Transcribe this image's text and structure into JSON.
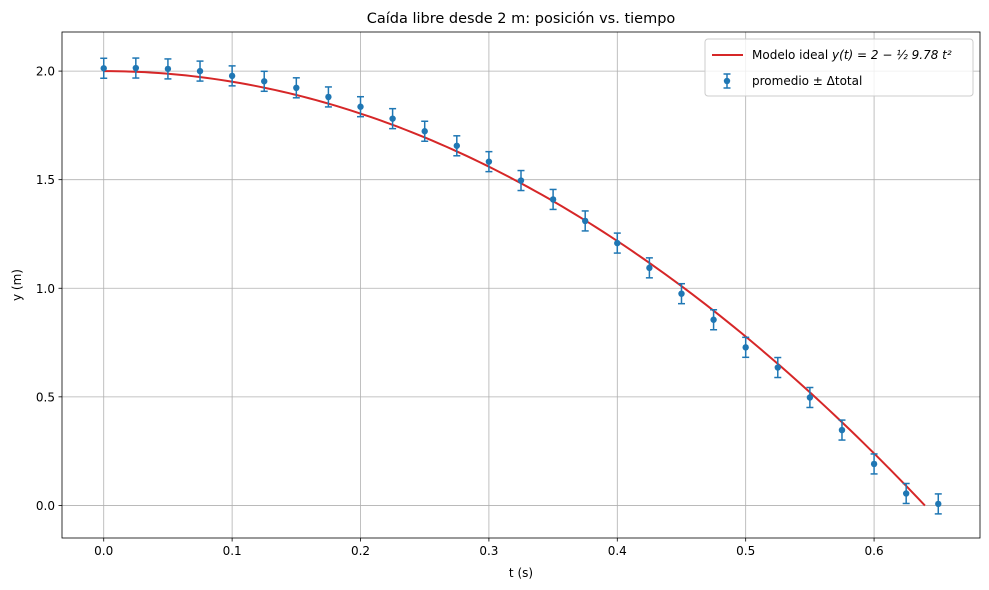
{
  "chart_data": {
    "type": "scatter",
    "title": "Caída libre desde 2 m: posición vs. tiempo",
    "xlabel": "t (s)",
    "ylabel": "y (m)",
    "xlim": [
      -0.0325,
      0.6825
    ],
    "ylim": [
      -0.15,
      2.18
    ],
    "xticks": [
      0.0,
      0.1,
      0.2,
      0.3,
      0.4,
      0.5,
      0.6
    ],
    "xtick_labels": [
      "0.0",
      "0.1",
      "0.2",
      "0.3",
      "0.4",
      "0.5",
      "0.6"
    ],
    "yticks": [
      0.0,
      0.5,
      1.0,
      1.5,
      2.0
    ],
    "ytick_labels": [
      "0.0",
      "0.5",
      "1.0",
      "1.5",
      "2.0"
    ],
    "grid": true,
    "legend_position": "top-right",
    "series": [
      {
        "name": "Modelo ideal",
        "legend_label_prefix": "Modelo ideal ",
        "legend_label_formula": "y(t) = 2 − ½ 9.78 t²",
        "kind": "line",
        "color": "#d62728",
        "model": {
          "y0": 2,
          "g": 9.78
        },
        "x_range": [
          0,
          0.6396
        ]
      },
      {
        "name": "promedio ± Δtotal",
        "kind": "errorbar",
        "color": "#1f77b4",
        "x": [
          0.0,
          0.025,
          0.05,
          0.075,
          0.1,
          0.125,
          0.15,
          0.175,
          0.2,
          0.225,
          0.25,
          0.275,
          0.3,
          0.325,
          0.35,
          0.375,
          0.4,
          0.425,
          0.45,
          0.475,
          0.5,
          0.525,
          0.55,
          0.575,
          0.6,
          0.625,
          0.65
        ],
        "y": [
          2.013,
          2.014,
          2.01,
          2.0,
          1.978,
          1.953,
          1.923,
          1.881,
          1.836,
          1.781,
          1.723,
          1.656,
          1.583,
          1.496,
          1.409,
          1.31,
          1.208,
          1.094,
          0.975,
          0.855,
          0.728,
          0.635,
          0.497,
          0.347,
          0.191,
          0.055,
          0.007
        ],
        "yerr": [
          0.046,
          0.046,
          0.046,
          0.046,
          0.046,
          0.046,
          0.046,
          0.046,
          0.046,
          0.046,
          0.046,
          0.046,
          0.046,
          0.046,
          0.046,
          0.046,
          0.046,
          0.046,
          0.046,
          0.046,
          0.046,
          0.046,
          0.046,
          0.046,
          0.046,
          0.046,
          0.046
        ]
      }
    ]
  }
}
